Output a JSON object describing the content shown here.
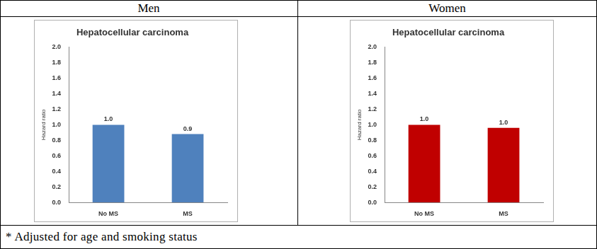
{
  "table": {
    "headers": [
      "Men",
      "Women"
    ],
    "footnote": "* Adjusted for age and smoking status"
  },
  "chart_data": [
    {
      "type": "bar",
      "title": "Hepatocellular carcinoma",
      "y_label": "Hazard ratio",
      "categories": [
        "No MS",
        "MS"
      ],
      "values": [
        1.0,
        0.88
      ],
      "value_labels": [
        "1.0",
        "0.9"
      ],
      "color": "#4f81bd",
      "data_labels": true,
      "grid": false,
      "ylim": [
        0,
        2
      ],
      "yticks": [
        {
          "value": 0,
          "label": "0.0"
        },
        {
          "value": 0.2,
          "label": "0.2"
        },
        {
          "value": 0.4,
          "label": "0.4"
        },
        {
          "value": 0.6,
          "label": "0.6"
        },
        {
          "value": 0.8,
          "label": "0.8"
        },
        {
          "value": 1,
          "label": "1.0"
        },
        {
          "value": 1.2,
          "label": "1.2"
        },
        {
          "value": 1.4,
          "label": "1.4"
        },
        {
          "value": 1.6,
          "label": "1.6"
        },
        {
          "value": 1.8,
          "label": "1.8"
        },
        {
          "value": 2,
          "label": "2.0"
        }
      ]
    },
    {
      "type": "bar",
      "title": "Hepatocellular carcinoma",
      "y_label": "Hazard ratio",
      "categories": [
        "No MS",
        "MS"
      ],
      "values": [
        1.0,
        0.96
      ],
      "value_labels": [
        "1.0",
        "1.0"
      ],
      "color": "#c00000",
      "data_labels": true,
      "grid": false,
      "ylim": [
        0,
        2
      ],
      "yticks": [
        {
          "value": 0,
          "label": "0.0"
        },
        {
          "value": 0.2,
          "label": "0.2"
        },
        {
          "value": 0.4,
          "label": "0.4"
        },
        {
          "value": 0.6,
          "label": "0.6"
        },
        {
          "value": 0.8,
          "label": "0.8"
        },
        {
          "value": 1,
          "label": "1.0"
        },
        {
          "value": 1.2,
          "label": "1.2"
        },
        {
          "value": 1.4,
          "label": "1.4"
        },
        {
          "value": 1.6,
          "label": "1.6"
        },
        {
          "value": 1.8,
          "label": "1.8"
        },
        {
          "value": 2,
          "label": "2.0"
        }
      ]
    }
  ]
}
